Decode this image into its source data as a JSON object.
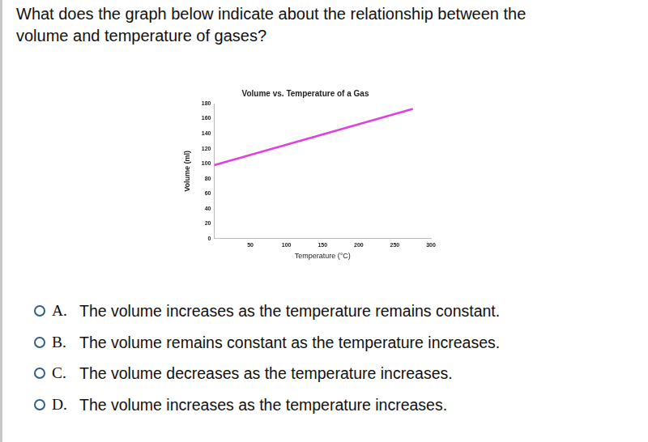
{
  "question": [
    "What does the graph below indicate about the relationship between the",
    "volume and temperature of gases?"
  ],
  "options": [
    {
      "letter": "A.",
      "text": "The volume increases as the temperature remains constant."
    },
    {
      "letter": "B.",
      "text": "The volume remains constant as the temperature increases."
    },
    {
      "letter": "C.",
      "text": "The volume decreases as the temperature increases."
    },
    {
      "letter": "D.",
      "text": "The volume increases as the temperature increases."
    }
  ],
  "chart_data": {
    "type": "line",
    "title": "Volume vs. Temperature of a Gas",
    "x_label": "Temperature (°C)",
    "y_label": "Volume (ml)",
    "x": [
      0,
      275
    ],
    "values": [
      98,
      173
    ],
    "color": "#e040e0",
    "xlim": [
      0,
      300
    ],
    "xticks": [
      50,
      100,
      150,
      200,
      250,
      300
    ],
    "ylim": [
      0,
      180
    ],
    "yticks": [
      0,
      20,
      40,
      60,
      80,
      100,
      120,
      140,
      160,
      180
    ],
    "grid": false
  }
}
